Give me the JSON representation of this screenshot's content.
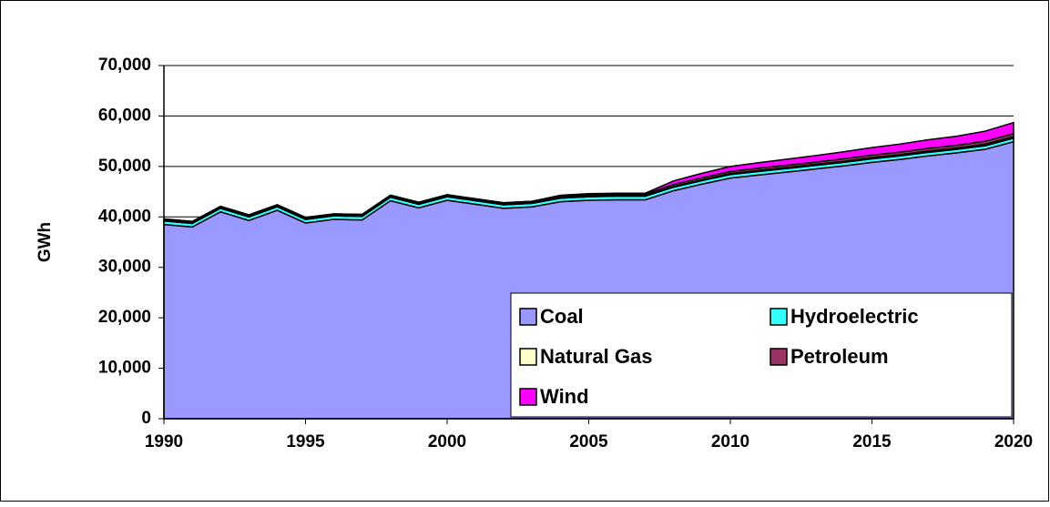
{
  "chart_data": {
    "type": "stacked_area",
    "y_label": "GWh",
    "x": [
      1990,
      1991,
      1992,
      1993,
      1994,
      1995,
      1996,
      1997,
      1998,
      1999,
      2000,
      2001,
      2002,
      2003,
      2004,
      2005,
      2006,
      2007,
      2008,
      2009,
      2010,
      2011,
      2012,
      2013,
      2014,
      2015,
      2016,
      2017,
      2018,
      2019,
      2020
    ],
    "series": [
      {
        "name": "Coal",
        "color": "#9999ff",
        "values": [
          38500,
          38000,
          41000,
          39300,
          41300,
          38800,
          39500,
          39400,
          43200,
          41800,
          43300,
          42500,
          41700,
          42000,
          43000,
          43300,
          43400,
          43400,
          45200,
          46500,
          47700,
          48300,
          48900,
          49500,
          50100,
          50800,
          51400,
          52100,
          52700,
          53400,
          54900
        ]
      },
      {
        "name": "Hydroelectric",
        "color": "#33ffff",
        "values": [
          700,
          700,
          700,
          700,
          700,
          700,
          700,
          700,
          700,
          700,
          700,
          700,
          700,
          700,
          700,
          700,
          700,
          700,
          700,
          700,
          700,
          700,
          700,
          700,
          700,
          700,
          700,
          700,
          700,
          700,
          700
        ]
      },
      {
        "name": "Natural Gas",
        "color": "#ffffcc",
        "values": [
          100,
          100,
          100,
          100,
          100,
          100,
          100,
          100,
          100,
          100,
          100,
          100,
          100,
          100,
          100,
          100,
          100,
          100,
          150,
          150,
          200,
          200,
          200,
          200,
          200,
          250,
          250,
          250,
          250,
          300,
          300
        ]
      },
      {
        "name": "Petroleum",
        "color": "#993366",
        "values": [
          300,
          300,
          300,
          300,
          300,
          300,
          300,
          300,
          300,
          300,
          300,
          300,
          300,
          300,
          300,
          300,
          300,
          300,
          400,
          400,
          400,
          450,
          450,
          450,
          500,
          500,
          500,
          550,
          550,
          600,
          600
        ]
      },
      {
        "name": "Wind",
        "color": "#ff00ff",
        "values": [
          0,
          0,
          0,
          0,
          0,
          0,
          0,
          0,
          0,
          0,
          0,
          0,
          0,
          0,
          200,
          200,
          200,
          200,
          700,
          900,
          1000,
          1100,
          1200,
          1300,
          1400,
          1500,
          1600,
          1700,
          1800,
          2000,
          2200
        ]
      }
    ],
    "xlim": [
      1990,
      2020
    ],
    "xticks": [
      1990,
      1995,
      2000,
      2005,
      2010,
      2015,
      2020
    ],
    "ylim": [
      0,
      70000
    ],
    "yticks": [
      {
        "value": 0,
        "label": "0"
      },
      {
        "value": 10000,
        "label": "10,000"
      },
      {
        "value": 20000,
        "label": "20,000"
      },
      {
        "value": 30000,
        "label": "30,000"
      },
      {
        "value": 40000,
        "label": "40,000"
      },
      {
        "value": 50000,
        "label": "50,000"
      },
      {
        "value": 60000,
        "label": "60,000"
      },
      {
        "value": 70000,
        "label": "70,000"
      }
    ],
    "grid": true,
    "legend": "lower right"
  }
}
